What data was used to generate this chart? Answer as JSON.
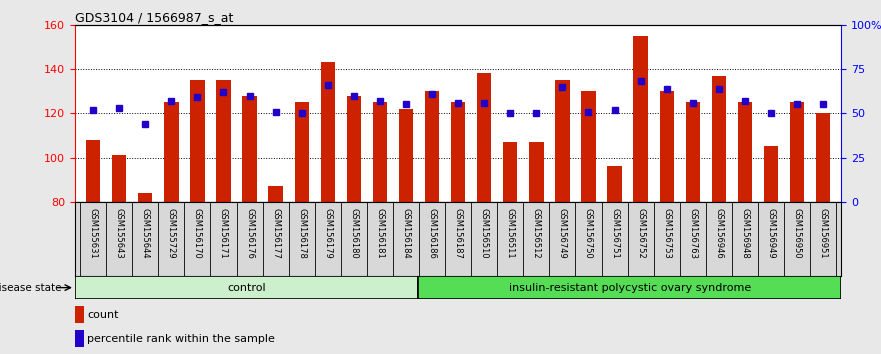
{
  "title": "GDS3104 / 1566987_s_at",
  "samples": [
    "GSM155631",
    "GSM155643",
    "GSM155644",
    "GSM155729",
    "GSM156170",
    "GSM156171",
    "GSM156176",
    "GSM156177",
    "GSM156178",
    "GSM156179",
    "GSM156180",
    "GSM156181",
    "GSM156184",
    "GSM156186",
    "GSM156187",
    "GSM156510",
    "GSM156511",
    "GSM156512",
    "GSM156749",
    "GSM156750",
    "GSM156751",
    "GSM156752",
    "GSM156753",
    "GSM156763",
    "GSM156946",
    "GSM156948",
    "GSM156949",
    "GSM156950",
    "GSM156951"
  ],
  "bar_values": [
    108,
    101,
    84,
    125,
    135,
    135,
    128,
    87,
    125,
    143,
    128,
    125,
    122,
    130,
    125,
    138,
    107,
    107,
    135,
    130,
    96,
    155,
    130,
    125,
    137,
    125,
    105,
    125,
    120
  ],
  "percentile_values": [
    52,
    53,
    44,
    57,
    59,
    62,
    60,
    51,
    50,
    66,
    60,
    57,
    55,
    61,
    56,
    56,
    50,
    50,
    65,
    51,
    52,
    68,
    64,
    56,
    64,
    57,
    50,
    55,
    55
  ],
  "group_labels": [
    "control",
    "insulin-resistant polycystic ovary syndrome"
  ],
  "group_sizes": [
    13,
    16
  ],
  "ylim_left": [
    80,
    160
  ],
  "ylim_right": [
    0,
    100
  ],
  "yticks_left": [
    80,
    100,
    120,
    140,
    160
  ],
  "yticks_right": [
    0,
    25,
    50,
    75,
    100
  ],
  "ytick_labels_right": [
    "0",
    "25",
    "50",
    "75",
    "100%"
  ],
  "bar_color": "#cc2200",
  "percentile_color": "#2200cc",
  "bg_color": "#d8d8d8",
  "plot_bg_color": "#ffffff",
  "group1_color": "#ccf0cc",
  "group2_color": "#55dd55",
  "bar_width": 0.55,
  "percentile_marker_size": 5,
  "fig_bg": "#e8e8e8"
}
